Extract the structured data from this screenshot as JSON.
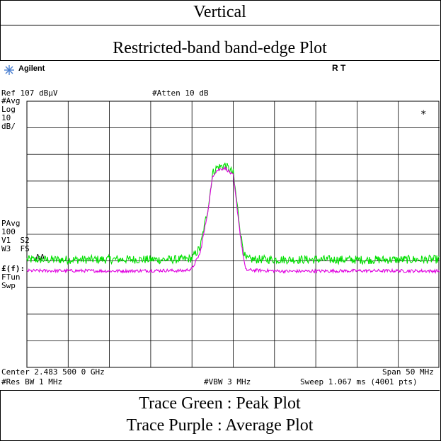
{
  "header": {
    "title": "Vertical",
    "subtitle": "Restricted-band band-edge Plot"
  },
  "instrument": {
    "brand": "Agilent",
    "status": "R   T",
    "ref_level": "Ref 107 dBµV",
    "atten": "#Atten 10 dB",
    "left_labels": [
      "#Avg",
      "Log",
      "10",
      "dB/"
    ],
    "left_labels_2": [
      "PAvg",
      "100",
      "V1  S2",
      "W3  FS",
      "AA"
    ],
    "left_labels_3": [
      "£(f):",
      "FTun",
      "Swp"
    ],
    "marker_symbol": "*",
    "center": "Center 2.483 500 0 GHz",
    "span": "Span 50 MHz",
    "rbw": "#Res BW 1 MHz",
    "vbw": "#VBW 3 MHz",
    "sweep": "Sweep 1.067 ms (4001 pts)"
  },
  "footer": {
    "line1": "Trace Green : Peak Plot",
    "line2": "Trace Purple : Average Plot"
  },
  "colors": {
    "peak": "#00e000",
    "average": "#e000e0",
    "grid": "#000000",
    "brand_icon": "#4a7fd0"
  },
  "chart_data": {
    "type": "line",
    "x_center_ghz": 2.4835,
    "span_mhz": 50,
    "ylim": [
      7,
      107
    ],
    "y_unit": "dBµV",
    "grid_divisions": 10,
    "series": [
      {
        "name": "Trace Green : Peak Plot",
        "x_mhz": [
          2458.5,
          2465,
          2470,
          2475,
          2477.5,
          2478.5,
          2479.5,
          2480.5,
          2481,
          2481.5,
          2482.5,
          2483.5,
          2484.5,
          2485,
          2490,
          2495,
          2500,
          2508.5
        ],
        "y": [
          47.5,
          47.5,
          47.6,
          47.5,
          47.6,
          48,
          52,
          68,
          80,
          82,
          83,
          80,
          55,
          47.6,
          47.5,
          47.5,
          47.4,
          47.6
        ]
      },
      {
        "name": "Trace Purple : Average Plot",
        "x_mhz": [
          2458.5,
          2465,
          2470,
          2475,
          2477.5,
          2478.5,
          2479.5,
          2480.5,
          2481,
          2481.5,
          2482.5,
          2483.5,
          2484.5,
          2485,
          2490,
          2495,
          2500,
          2508.5
        ],
        "y": [
          43.3,
          43.3,
          43.2,
          43.4,
          43.3,
          44,
          50,
          67,
          79,
          81,
          82,
          79,
          53,
          43.6,
          43.1,
          43.2,
          43.3,
          43.2
        ]
      }
    ]
  }
}
